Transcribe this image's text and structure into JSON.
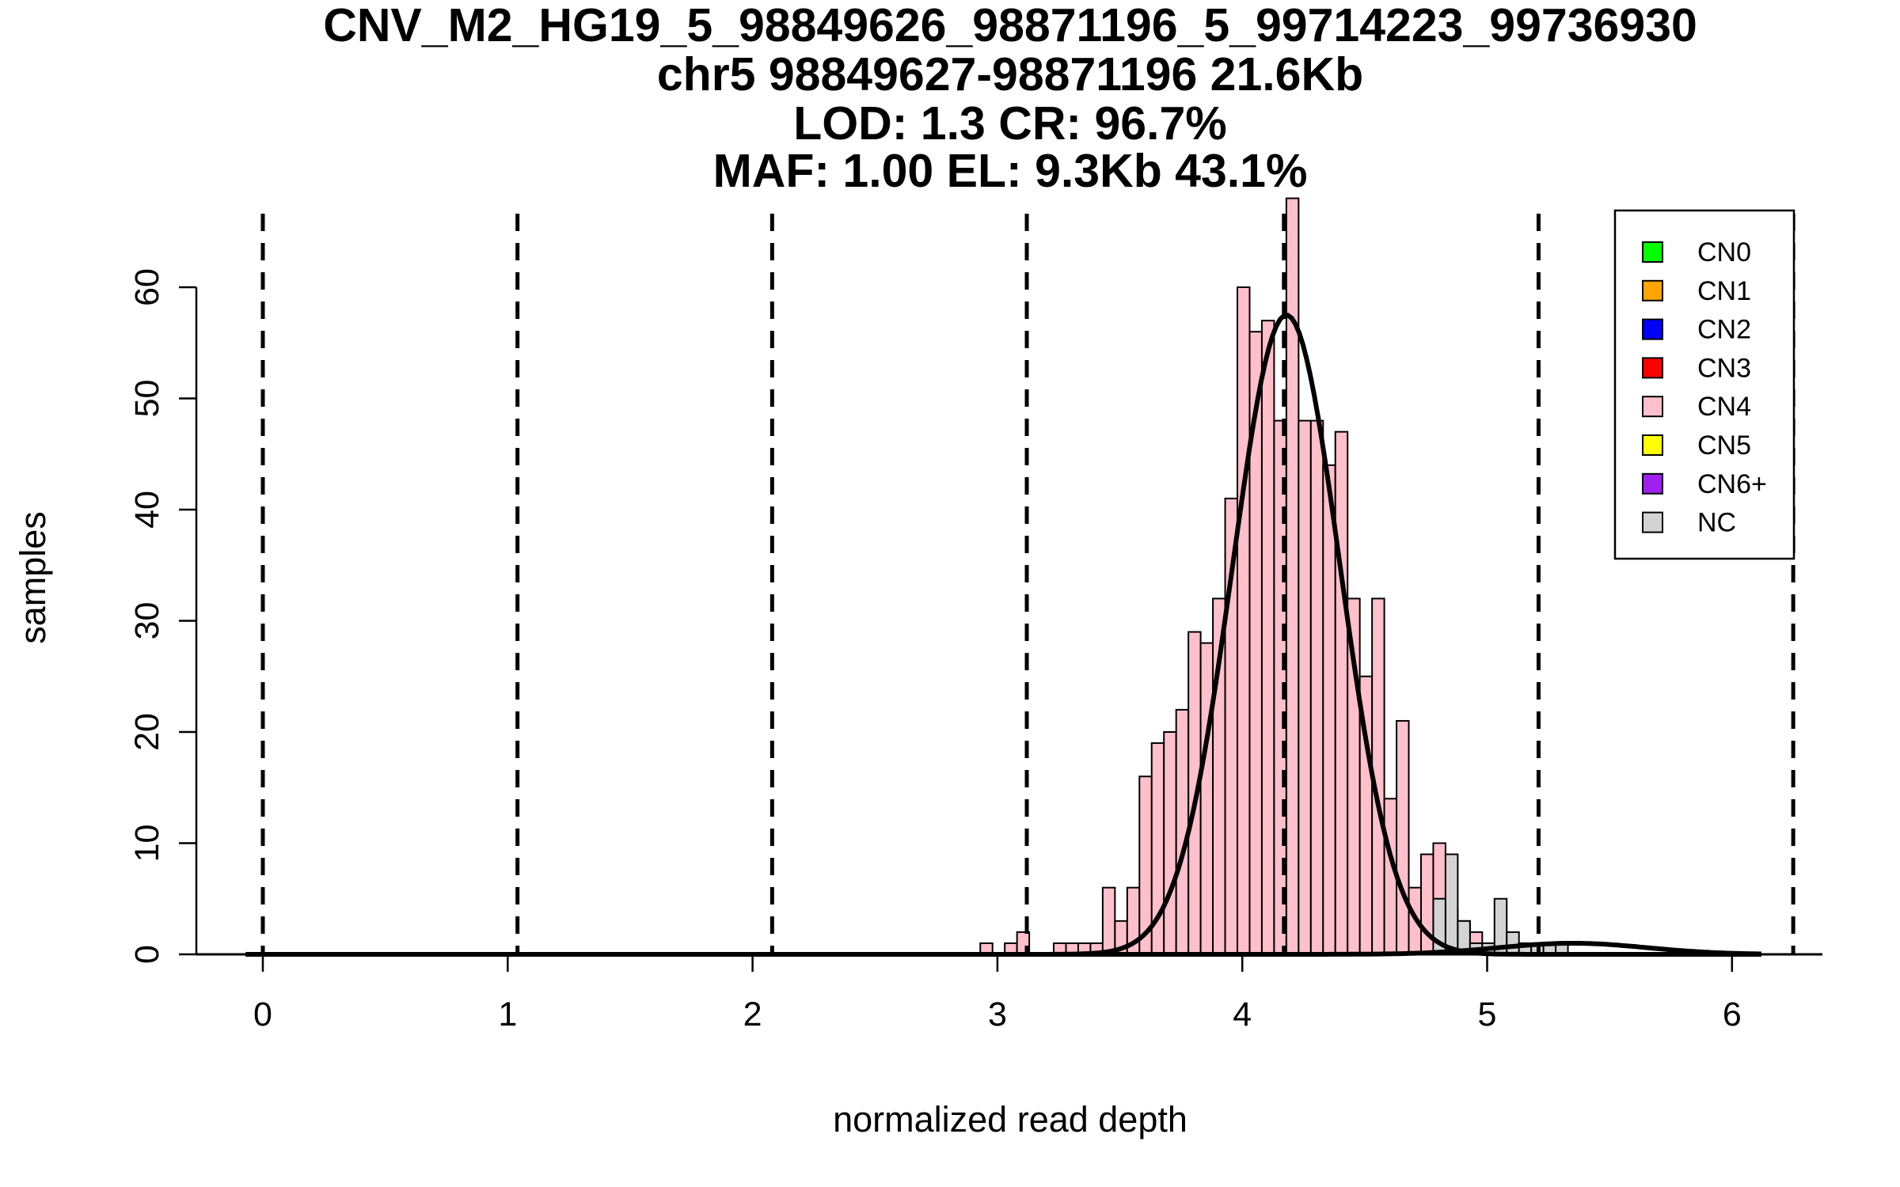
{
  "chart_data": {
    "type": "histogram",
    "title_lines": [
      "CNV_M2_HG19_5_98849626_98871196_5_99714223_99736930",
      "chr5 98849627-98871196 21.6Kb",
      "LOD: 1.3 CR: 96.7%",
      "MAF: 1.00 EL: 9.3Kb 43.1%"
    ],
    "xlabel": "normalized read depth",
    "ylabel": "samples",
    "xlim": [
      -0.27,
      6.37
    ],
    "ylim": [
      0,
      66
    ],
    "x_ticks": [
      0,
      1,
      2,
      3,
      4,
      5,
      6
    ],
    "x_tick_labels": [
      "0",
      "1",
      "2",
      "3",
      "4",
      "5",
      "6"
    ],
    "y_ticks": [
      0,
      10,
      20,
      30,
      40,
      50,
      60
    ],
    "y_tick_labels": [
      "0",
      "10",
      "20",
      "30",
      "40",
      "50",
      "60"
    ],
    "copy_number_dashed_lines": [
      0.0,
      1.04,
      2.08,
      3.12,
      4.17,
      5.21,
      6.25
    ],
    "bin_width": 0.05,
    "series": [
      {
        "name": "CN4",
        "color": "#FFC0CB",
        "bins": [
          {
            "x0": 2.93,
            "count": 1
          },
          {
            "x0": 3.03,
            "count": 1
          },
          {
            "x0": 3.08,
            "count": 2
          },
          {
            "x0": 3.23,
            "count": 1
          },
          {
            "x0": 3.28,
            "count": 1
          },
          {
            "x0": 3.33,
            "count": 1
          },
          {
            "x0": 3.38,
            "count": 1
          },
          {
            "x0": 3.43,
            "count": 6
          },
          {
            "x0": 3.48,
            "count": 3
          },
          {
            "x0": 3.53,
            "count": 6
          },
          {
            "x0": 3.58,
            "count": 16
          },
          {
            "x0": 3.63,
            "count": 19
          },
          {
            "x0": 3.68,
            "count": 20
          },
          {
            "x0": 3.73,
            "count": 22
          },
          {
            "x0": 3.78,
            "count": 29
          },
          {
            "x0": 3.83,
            "count": 28
          },
          {
            "x0": 3.88,
            "count": 32
          },
          {
            "x0": 3.93,
            "count": 41
          },
          {
            "x0": 3.98,
            "count": 60
          },
          {
            "x0": 4.03,
            "count": 56
          },
          {
            "x0": 4.08,
            "count": 57
          },
          {
            "x0": 4.13,
            "count": 48
          },
          {
            "x0": 4.18,
            "count": 68
          },
          {
            "x0": 4.23,
            "count": 48
          },
          {
            "x0": 4.28,
            "count": 48
          },
          {
            "x0": 4.33,
            "count": 44
          },
          {
            "x0": 4.38,
            "count": 47
          },
          {
            "x0": 4.43,
            "count": 32
          },
          {
            "x0": 4.48,
            "count": 25
          },
          {
            "x0": 4.53,
            "count": 32
          },
          {
            "x0": 4.58,
            "count": 14
          },
          {
            "x0": 4.63,
            "count": 21
          },
          {
            "x0": 4.68,
            "count": 6
          },
          {
            "x0": 4.73,
            "count": 9
          },
          {
            "x0": 4.78,
            "count": 10
          },
          {
            "x0": 4.83,
            "count": 4
          },
          {
            "x0": 4.88,
            "count": 3
          },
          {
            "x0": 4.93,
            "count": 2
          },
          {
            "x0": 5.13,
            "count": 1
          }
        ]
      },
      {
        "name": "NC",
        "color": "#D3D3D3",
        "bins": [
          {
            "x0": 4.78,
            "count": 5
          },
          {
            "x0": 4.83,
            "count": 9
          },
          {
            "x0": 4.88,
            "count": 3
          },
          {
            "x0": 4.93,
            "count": 1
          },
          {
            "x0": 4.98,
            "count": 1
          },
          {
            "x0": 5.03,
            "count": 5
          },
          {
            "x0": 5.08,
            "count": 2
          },
          {
            "x0": 5.13,
            "count": 1
          },
          {
            "x0": 5.18,
            "count": 1
          },
          {
            "x0": 5.23,
            "count": 1
          },
          {
            "x0": 5.28,
            "count": 1
          }
        ]
      }
    ],
    "fitted_curves": [
      {
        "name": "CN4 fit",
        "mean": 4.18,
        "sd": 0.22,
        "peak": 57.5
      },
      {
        "name": "NC fit",
        "mean": 5.35,
        "sd": 0.3,
        "peak": 1.0
      }
    ],
    "legend": {
      "placement": "top-right",
      "entries": [
        {
          "label": "CN0",
          "color": "#00FF00"
        },
        {
          "label": "CN1",
          "color": "#FFA500"
        },
        {
          "label": "CN2",
          "color": "#0000FF"
        },
        {
          "label": "CN3",
          "color": "#FF0000"
        },
        {
          "label": "CN4",
          "color": "#FFC0CB"
        },
        {
          "label": "CN5",
          "color": "#FFFF00"
        },
        {
          "label": "CN6+",
          "color": "#A020F0"
        },
        {
          "label": "NC",
          "color": "#D3D3D3"
        }
      ]
    }
  }
}
